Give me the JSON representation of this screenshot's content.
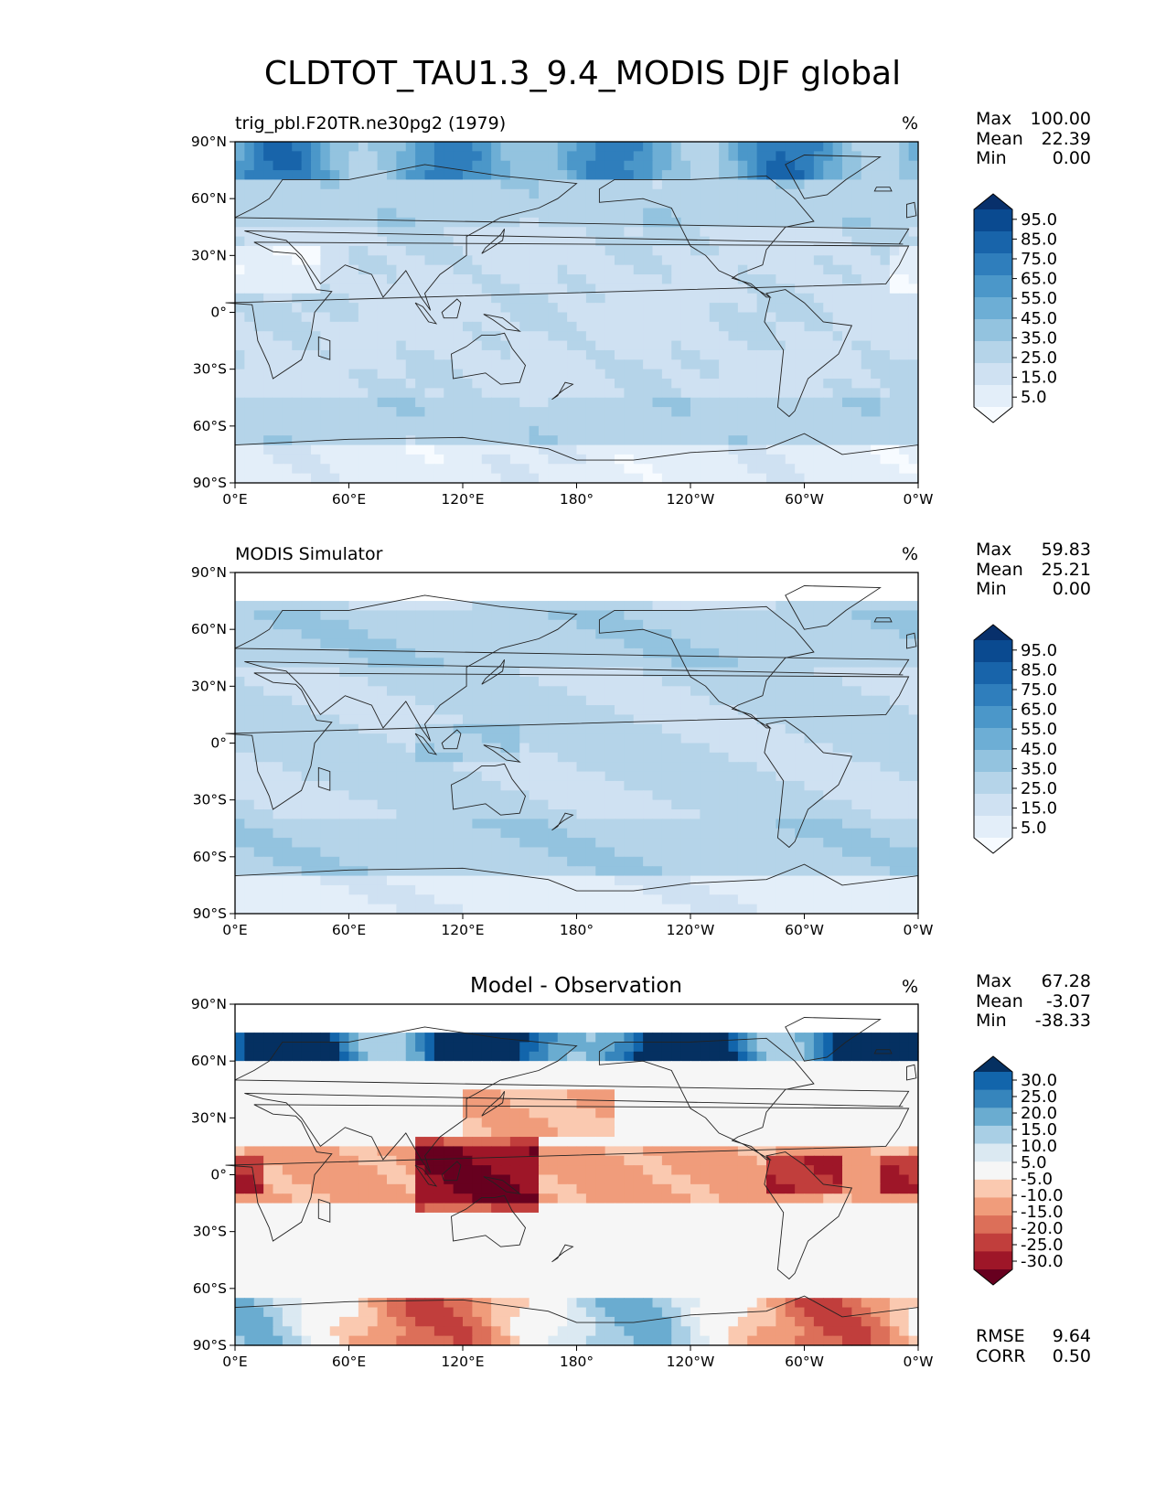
{
  "title": "CLDTOT_TAU1.3_9.4_MODIS DJF global",
  "colors": {
    "blues": [
      "#f7fbff",
      "#e3eef9",
      "#cfe1f2",
      "#b5d4e9",
      "#93c3df",
      "#6daed5",
      "#4b97c9",
      "#2f7ebc",
      "#1864aa",
      "#0a4a90",
      "#08306b"
    ],
    "rdbu": [
      "#67001f",
      "#9e1628",
      "#c13e3c",
      "#dc6f59",
      "#f09c7b",
      "#fac9b0",
      "#f6f6f6",
      "#dbe9f2",
      "#a9cfe5",
      "#6aacd0",
      "#3685bc",
      "#1265ab",
      "#053061"
    ],
    "land": "#e4eff8"
  },
  "chart_data": [
    {
      "type": "heatmap",
      "title": "trig_pbl.F20TR.ne30pg2 (1979)",
      "units": "%",
      "xticks": [
        "0°E",
        "60°E",
        "120°E",
        "180°",
        "120°W",
        "60°W",
        "0°W"
      ],
      "yticks": [
        "90°N",
        "60°N",
        "30°N",
        "0°",
        "30°S",
        "60°S",
        "90°S"
      ],
      "stats": {
        "max_label": "Max",
        "max": "100.00",
        "mean_label": "Mean",
        "mean": "22.39",
        "min_label": "Min",
        "min": "0.00"
      },
      "colorbar": {
        "labels": [
          "95.0",
          "85.0",
          "75.0",
          "65.0",
          "55.0",
          "45.0",
          "35.0",
          "25.0",
          "15.0",
          "5.0"
        ],
        "levels": [
          0,
          5,
          15,
          25,
          35,
          45,
          55,
          65,
          75,
          85,
          95,
          100
        ]
      }
    },
    {
      "type": "heatmap",
      "title": "MODIS Simulator",
      "units": "%",
      "xticks": [
        "0°E",
        "60°E",
        "120°E",
        "180°",
        "120°W",
        "60°W",
        "0°W"
      ],
      "yticks": [
        "90°N",
        "60°N",
        "30°N",
        "0°",
        "30°S",
        "60°S",
        "90°S"
      ],
      "stats": {
        "max_label": "Max",
        "max": "59.83",
        "mean_label": "Mean",
        "mean": "25.21",
        "min_label": "Min",
        "min": "0.00"
      },
      "colorbar": {
        "labels": [
          "95.0",
          "85.0",
          "75.0",
          "65.0",
          "55.0",
          "45.0",
          "35.0",
          "25.0",
          "15.0",
          "5.0"
        ],
        "levels": [
          0,
          5,
          15,
          25,
          35,
          45,
          55,
          65,
          75,
          85,
          95,
          100
        ]
      }
    },
    {
      "type": "heatmap",
      "title": "Model - Observation",
      "units": "%",
      "xticks": [
        "0°E",
        "60°E",
        "120°E",
        "180°",
        "120°W",
        "60°W",
        "0°W"
      ],
      "yticks": [
        "90°N",
        "60°N",
        "30°N",
        "0°",
        "30°S",
        "60°S",
        "90°S"
      ],
      "stats": {
        "max_label": "Max",
        "max": "67.28",
        "mean_label": "Mean",
        "mean": "-3.07",
        "min_label": "Min",
        "min": "-38.33"
      },
      "colorbar": {
        "labels": [
          "30.0",
          "25.0",
          "20.0",
          "15.0",
          "10.0",
          "5.0",
          "-5.0",
          "-10.0",
          "-15.0",
          "-20.0",
          "-25.0",
          "-30.0"
        ],
        "levels": [
          -35,
          -30,
          -25,
          -20,
          -15,
          -10,
          -5,
          5,
          10,
          15,
          20,
          25,
          30,
          35
        ]
      },
      "metrics": {
        "rmse_label": "RMSE",
        "rmse": "9.64",
        "corr_label": "CORR",
        "corr": "0.50"
      }
    }
  ]
}
